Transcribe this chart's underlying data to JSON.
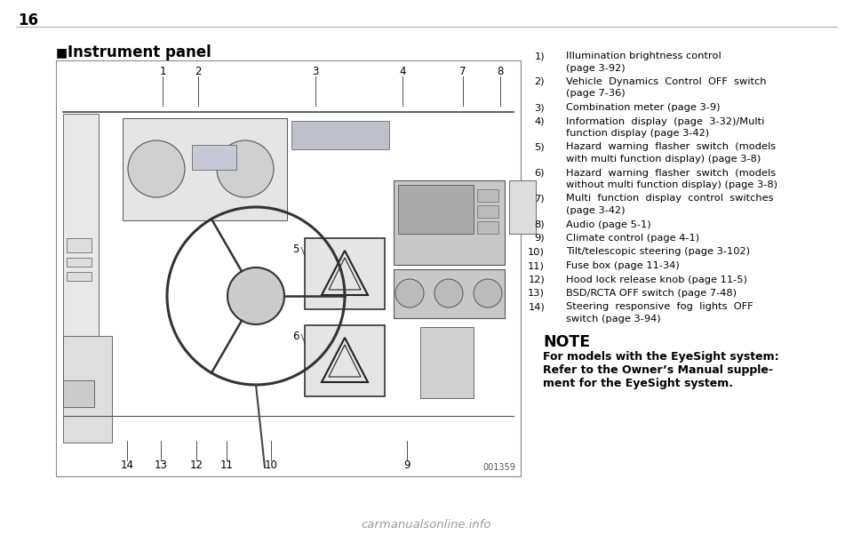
{
  "page_number": "16",
  "section_title": "Instrument panel",
  "bg_color": "#ffffff",
  "image_label": "001359",
  "image_numbers_top": [
    "1",
    "2",
    "3",
    "4",
    "7",
    "8"
  ],
  "image_numbers_bottom": [
    "14",
    "13",
    "12",
    "11",
    "10",
    "9"
  ],
  "image_numbers_middle_left": [
    "5",
    "6"
  ],
  "items": [
    {
      "num": "1)",
      "lines": [
        "Illumination brightness control",
        "(page 3-92)"
      ]
    },
    {
      "num": "2)",
      "lines": [
        "Vehicle  Dynamics  Control  OFF  switch",
        "(page 7-36)"
      ]
    },
    {
      "num": "3)",
      "lines": [
        "Combination meter (page 3-9)"
      ]
    },
    {
      "num": "4)",
      "lines": [
        "Information  display  (page  3-32)/Multi",
        "function display (page 3-42)"
      ]
    },
    {
      "num": "5)",
      "lines": [
        "Hazard  warning  flasher  switch  (models",
        "with multi function display) (page 3-8)"
      ]
    },
    {
      "num": "6)",
      "lines": [
        "Hazard  warning  flasher  switch  (models",
        "without multi function display) (page 3-8)"
      ]
    },
    {
      "num": "7)",
      "lines": [
        "Multi  function  display  control  switches",
        "(page 3-42)"
      ]
    },
    {
      "num": "8)",
      "lines": [
        "Audio (page 5-1)"
      ]
    },
    {
      "num": "9)",
      "lines": [
        "Climate control (page 4-1)"
      ]
    },
    {
      "num": "10)",
      "lines": [
        "Tilt/telescopic steering (page 3-102)"
      ]
    },
    {
      "num": "11)",
      "lines": [
        "Fuse box (page 11-34)"
      ]
    },
    {
      "num": "12)",
      "lines": [
        "Hood lock release knob (page 11-5)"
      ]
    },
    {
      "num": "13)",
      "lines": [
        "BSD/RCTA OFF switch (page 7-48)"
      ]
    },
    {
      "num": "14)",
      "lines": [
        "Steering  responsive  fog  lights  OFF",
        "switch (page 3-94)"
      ]
    }
  ],
  "note_title": "NOTE",
  "note_text_lines": [
    "For models with the EyeSight system:",
    "Refer to the Owner’s Manual supple-",
    "ment for the EyeSight system."
  ],
  "watermark": "carmanualsonline.info",
  "text_color": "#000000",
  "light_gray": "#f0f0f0",
  "med_gray": "#cccccc",
  "dark_gray": "#666666",
  "line_color": "#999999"
}
